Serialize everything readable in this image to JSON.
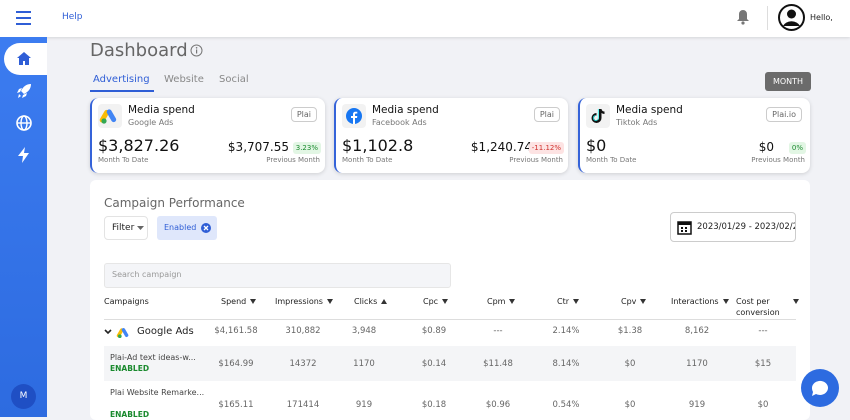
{
  "header": {
    "help": "Help",
    "greeting": "Hello,"
  },
  "sidebar": {
    "avatar": "M"
  },
  "page": {
    "title": "Dashboard",
    "tabs": [
      "Advertising",
      "Website",
      "Social"
    ],
    "period": "MONTH"
  },
  "cards": [
    {
      "title": "Media spend",
      "source": "Google Ads",
      "badge": "Plai",
      "value": "$3,827.26",
      "value_label": "Month To Date",
      "previous": "$3,707.55",
      "change": "3.23%",
      "previous_label": "Previous Month"
    },
    {
      "title": "Media spend",
      "source": "Facebook Ads",
      "badge": "Plai",
      "value": "$1,102.8",
      "value_label": "Month To Date",
      "previous": "$1,240.74",
      "change": "-11.12%",
      "previous_label": "Previous Month"
    },
    {
      "title": "Media spend",
      "source": "Tiktok Ads",
      "badge": "Plai.io",
      "value": "$0",
      "value_label": "Month To Date",
      "previous": "$0",
      "change": "0%",
      "previous_label": "Previous Month"
    }
  ],
  "campaigns": {
    "title": "Campaign Performance",
    "filter": "Filter",
    "chip": "Enabled",
    "date_range": "2023/01/29 - 2023/02/2",
    "search": "Search campaign"
  },
  "table": {
    "headers": [
      "Campaigns",
      "Spend",
      "Impressions",
      "Clicks",
      "Cpc",
      "Cpm",
      "Ctr",
      "Cpv",
      "Interactions",
      "Cost per conversion"
    ],
    "rows": [
      {
        "name": "Google Ads",
        "cells": [
          "$4,161.58",
          "310,882",
          "3,948",
          "$0.89",
          "---",
          "2.14%",
          "$1.38",
          "8,162",
          "---"
        ]
      },
      {
        "name": "Plai-Ad text ideas-w...",
        "status": "ENABLED",
        "cells": [
          "$164.99",
          "14372",
          "1170",
          "$0.14",
          "$11.48",
          "8.14%",
          "$0",
          "1170",
          "$15"
        ]
      },
      {
        "name": "Plai Website Remarke...",
        "status": "ENABLED",
        "cells": [
          "$165.11",
          "171414",
          "919",
          "$0.18",
          "$0.96",
          "0.54%",
          "$0",
          "919",
          "$0"
        ]
      }
    ]
  }
}
